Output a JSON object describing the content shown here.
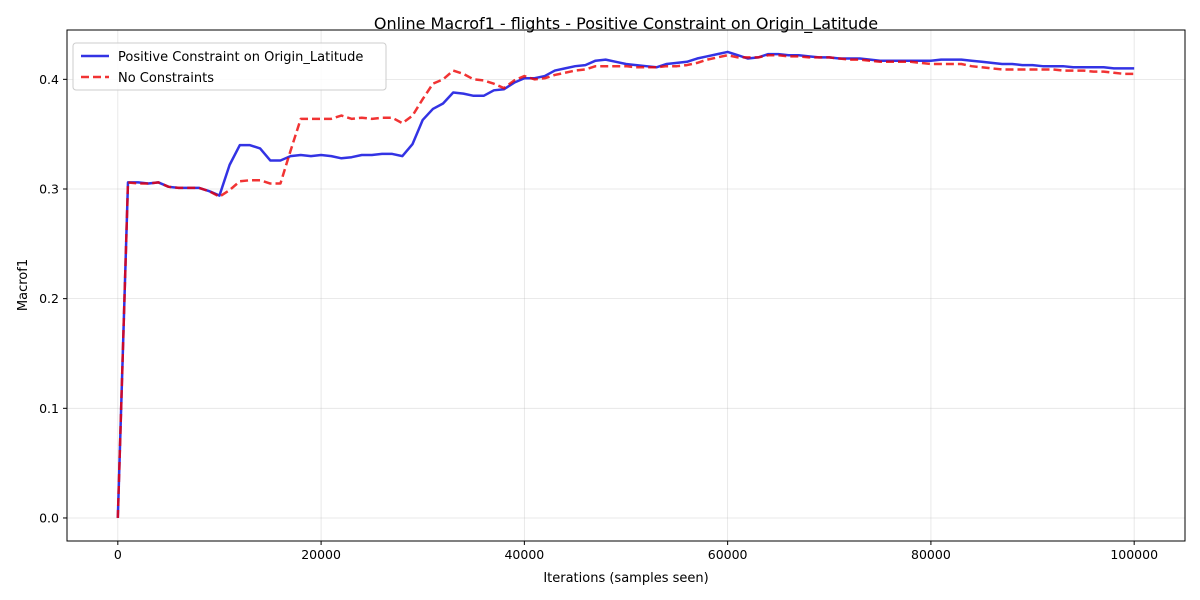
{
  "chart_data": {
    "type": "line",
    "title": "Online Macrof1 - flights - Positive Constraint on Origin_Latitude",
    "xlabel": "Iterations (samples seen)",
    "ylabel": "Macrof1",
    "xlim": [
      -5000,
      105000
    ],
    "ylim": [
      -0.021,
      0.445
    ],
    "x_ticks": [
      0,
      20000,
      40000,
      60000,
      80000,
      100000
    ],
    "x_tick_labels": [
      "0",
      "20000",
      "40000",
      "60000",
      "80000",
      "100000"
    ],
    "y_ticks": [
      0.0,
      0.1,
      0.2,
      0.3,
      0.4
    ],
    "y_tick_labels": [
      "0.0",
      "0.1",
      "0.2",
      "0.3",
      "0.4"
    ],
    "grid": true,
    "legend_position": "top-left",
    "x": [
      0,
      1000,
      2000,
      3000,
      4000,
      5000,
      6000,
      7000,
      8000,
      9000,
      10000,
      11000,
      12000,
      13000,
      14000,
      15000,
      16000,
      17000,
      18000,
      19000,
      20000,
      21000,
      22000,
      23000,
      24000,
      25000,
      26000,
      27000,
      28000,
      29000,
      30000,
      31000,
      32000,
      33000,
      34000,
      35000,
      36000,
      37000,
      38000,
      39000,
      40000,
      41000,
      42000,
      43000,
      44000,
      45000,
      46000,
      47000,
      48000,
      49000,
      50000,
      51000,
      52000,
      53000,
      54000,
      55000,
      56000,
      57000,
      58000,
      59000,
      60000,
      61000,
      62000,
      63000,
      64000,
      65000,
      66000,
      67000,
      68000,
      69000,
      70000,
      71000,
      72000,
      73000,
      74000,
      75000,
      76000,
      77000,
      78000,
      79000,
      80000,
      81000,
      82000,
      83000,
      84000,
      85000,
      86000,
      87000,
      88000,
      89000,
      90000,
      91000,
      92000,
      93000,
      94000,
      95000,
      96000,
      97000,
      98000,
      99000,
      100000
    ],
    "series": [
      {
        "name": "Positive Constraint on Origin_Latitude",
        "color": "#0000dd",
        "style": "solid",
        "values": [
          0.0,
          0.306,
          0.306,
          0.305,
          0.306,
          0.302,
          0.301,
          0.301,
          0.301,
          0.298,
          0.294,
          0.322,
          0.34,
          0.34,
          0.337,
          0.326,
          0.326,
          0.33,
          0.331,
          0.33,
          0.331,
          0.33,
          0.328,
          0.329,
          0.331,
          0.331,
          0.332,
          0.332,
          0.33,
          0.341,
          0.363,
          0.373,
          0.378,
          0.388,
          0.387,
          0.385,
          0.385,
          0.39,
          0.391,
          0.397,
          0.401,
          0.401,
          0.403,
          0.408,
          0.41,
          0.412,
          0.413,
          0.417,
          0.418,
          0.416,
          0.414,
          0.413,
          0.412,
          0.411,
          0.414,
          0.415,
          0.416,
          0.419,
          0.421,
          0.423,
          0.425,
          0.422,
          0.419,
          0.42,
          0.423,
          0.423,
          0.422,
          0.422,
          0.421,
          0.42,
          0.42,
          0.419,
          0.419,
          0.419,
          0.418,
          0.417,
          0.417,
          0.417,
          0.417,
          0.417,
          0.417,
          0.418,
          0.418,
          0.418,
          0.417,
          0.416,
          0.415,
          0.414,
          0.414,
          0.413,
          0.413,
          0.412,
          0.412,
          0.412,
          0.411,
          0.411,
          0.411,
          0.411,
          0.41,
          0.41,
          0.41
        ]
      },
      {
        "name": "No Constraints",
        "color": "#ee0000",
        "style": "dashed",
        "values": [
          0.0,
          0.306,
          0.305,
          0.305,
          0.306,
          0.302,
          0.301,
          0.301,
          0.301,
          0.298,
          0.293,
          0.299,
          0.307,
          0.308,
          0.308,
          0.305,
          0.305,
          0.335,
          0.364,
          0.364,
          0.364,
          0.364,
          0.367,
          0.364,
          0.365,
          0.364,
          0.365,
          0.365,
          0.36,
          0.367,
          0.382,
          0.396,
          0.4,
          0.408,
          0.405,
          0.4,
          0.399,
          0.396,
          0.392,
          0.399,
          0.403,
          0.4,
          0.401,
          0.404,
          0.406,
          0.408,
          0.409,
          0.412,
          0.412,
          0.412,
          0.412,
          0.411,
          0.411,
          0.411,
          0.412,
          0.412,
          0.413,
          0.415,
          0.418,
          0.42,
          0.422,
          0.42,
          0.42,
          0.42,
          0.422,
          0.422,
          0.421,
          0.421,
          0.42,
          0.42,
          0.42,
          0.419,
          0.418,
          0.418,
          0.417,
          0.416,
          0.416,
          0.416,
          0.416,
          0.415,
          0.414,
          0.414,
          0.414,
          0.414,
          0.412,
          0.411,
          0.41,
          0.409,
          0.409,
          0.409,
          0.409,
          0.409,
          0.409,
          0.408,
          0.408,
          0.408,
          0.407,
          0.407,
          0.406,
          0.405,
          0.405
        ]
      }
    ]
  }
}
